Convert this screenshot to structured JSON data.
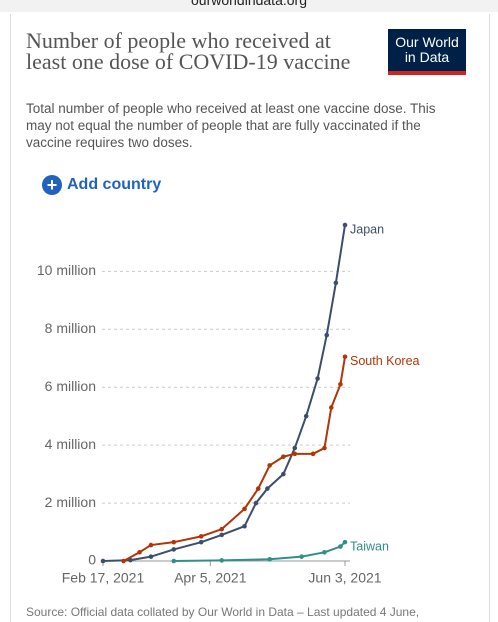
{
  "url": "ourworldindata.org",
  "logo": "Our World in Data",
  "add_country": "Add country",
  "chart_data": {
    "type": "line",
    "title": "Number of people who received at least one dose of COVID-19 vaccine",
    "subtitle": "Total number of people who received at least one vaccine dose. This may not equal the number of people that are fully vaccinated if the vaccine requires two doses.",
    "source": "Source: Official data collated by Our World in Data – Last updated 4 June,",
    "xlim": [
      "2021-02-17",
      "2021-06-03"
    ],
    "xticks": [
      {
        "value": "2021-02-17",
        "label": "Feb 17, 2021"
      },
      {
        "value": "2021-04-05",
        "label": "Apr 5, 2021"
      },
      {
        "value": "2021-06-03",
        "label": "Jun 3, 2021"
      }
    ],
    "ylim": [
      0,
      11600000
    ],
    "yticks": [
      0,
      {
        "value": 2000000,
        "label": "2 million"
      },
      {
        "value": 4000000,
        "label": "4 million"
      },
      {
        "value": 6000000,
        "label": "6 million"
      },
      {
        "value": 8000000,
        "label": "8 million"
      },
      {
        "value": 10000000,
        "label": "10 million"
      }
    ],
    "grid": true,
    "series": [
      {
        "name": "Japan",
        "color": "#3c4e6e",
        "x": [
          "2021-02-17",
          "2021-03-01",
          "2021-03-10",
          "2021-03-20",
          "2021-04-01",
          "2021-04-10",
          "2021-04-20",
          "2021-04-25",
          "2021-04-30",
          "2021-05-07",
          "2021-05-12",
          "2021-05-17",
          "2021-05-22",
          "2021-05-26",
          "2021-05-30",
          "2021-06-03"
        ],
        "values": [
          0,
          30000,
          150000,
          400000,
          650000,
          900000,
          1200000,
          2000000,
          2500000,
          3000000,
          3900000,
          5000000,
          6300000,
          7800000,
          9600000,
          11600000
        ]
      },
      {
        "name": "South Korea",
        "color": "#b13507",
        "x": [
          "2021-02-26",
          "2021-03-05",
          "2021-03-10",
          "2021-03-20",
          "2021-04-01",
          "2021-04-10",
          "2021-04-20",
          "2021-04-26",
          "2021-05-01",
          "2021-05-07",
          "2021-05-12",
          "2021-05-20",
          "2021-05-25",
          "2021-05-28",
          "2021-06-01",
          "2021-06-03"
        ],
        "values": [
          0,
          300000,
          550000,
          650000,
          850000,
          1100000,
          1800000,
          2500000,
          3300000,
          3600000,
          3700000,
          3700000,
          3900000,
          5300000,
          6100000,
          7050000
        ]
      },
      {
        "name": "Taiwan",
        "color": "#2f8f8a",
        "x": [
          "2021-03-20",
          "2021-04-10",
          "2021-05-01",
          "2021-05-15",
          "2021-05-25",
          "2021-06-01",
          "2021-06-03"
        ],
        "values": [
          0,
          20000,
          60000,
          150000,
          300000,
          500000,
          650000
        ]
      }
    ]
  }
}
